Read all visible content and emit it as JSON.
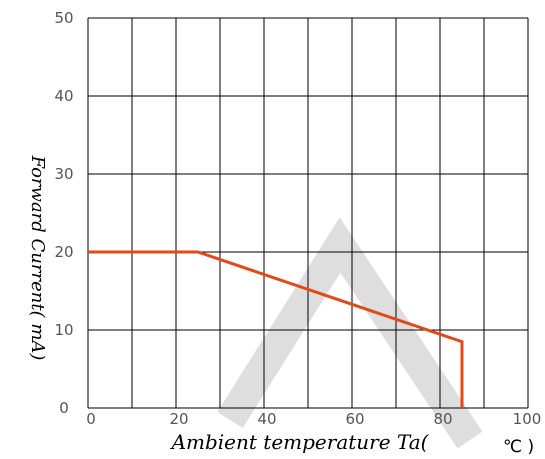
{
  "chart_data": {
    "type": "line",
    "xlabel": "Ambient temperature Ta(",
    "xlabel_unit": "℃ )",
    "ylabel": "Forward Current(  mA)",
    "xlim": [
      0,
      100
    ],
    "ylim": [
      0,
      50
    ],
    "x_ticks": [
      "0",
      "20",
      "40",
      "60",
      "80",
      "100"
    ],
    "y_ticks": [
      "0",
      "10",
      "20",
      "30",
      "40",
      "50"
    ],
    "grid": true,
    "series": [
      {
        "color": "#e04a1a",
        "points": [
          {
            "x": 0,
            "y": 20
          },
          {
            "x": 25,
            "y": 20
          },
          {
            "x": 85,
            "y": 8.5
          },
          {
            "x": 85,
            "y": 0
          }
        ]
      }
    ],
    "watermark_color": "#d0d0d0"
  }
}
